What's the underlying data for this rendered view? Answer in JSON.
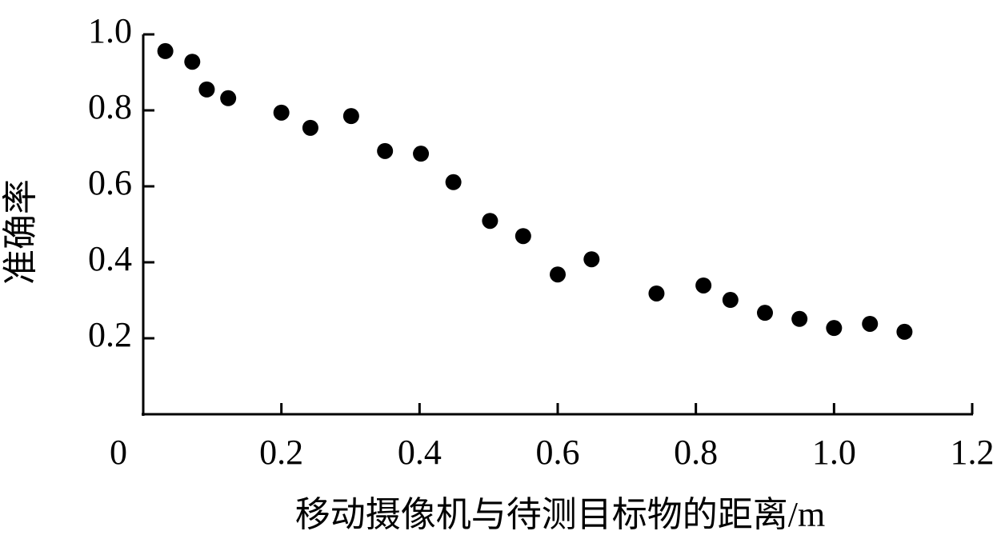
{
  "chart_data": {
    "type": "scatter",
    "color": "#000000",
    "x_label": "移动摄像机与待测目标物的距离/m",
    "y_label": "准确率",
    "x": [
      0.032,
      0.071,
      0.092,
      0.123,
      0.2,
      0.242,
      0.301,
      0.35,
      0.402,
      0.449,
      0.502,
      0.55,
      0.6,
      0.649,
      0.743,
      0.811,
      0.85,
      0.9,
      0.95,
      1.0,
      1.052,
      1.102
    ],
    "values": [
      0.956,
      0.928,
      0.855,
      0.832,
      0.794,
      0.754,
      0.785,
      0.693,
      0.686,
      0.611,
      0.509,
      0.469,
      0.368,
      0.408,
      0.318,
      0.339,
      0.301,
      0.267,
      0.251,
      0.227,
      0.238,
      0.217
    ],
    "xlim": [
      0,
      1.2
    ],
    "ylim": [
      0,
      1.0
    ],
    "xticks": [
      0,
      0.2,
      0.4,
      0.6,
      0.8,
      {
        "value": 1,
        "label": "1.0"
      },
      1.2
    ],
    "yticks": [
      0.2,
      0.4,
      0.6,
      0.8,
      {
        "value": 1,
        "label": "1.0"
      }
    ]
  }
}
